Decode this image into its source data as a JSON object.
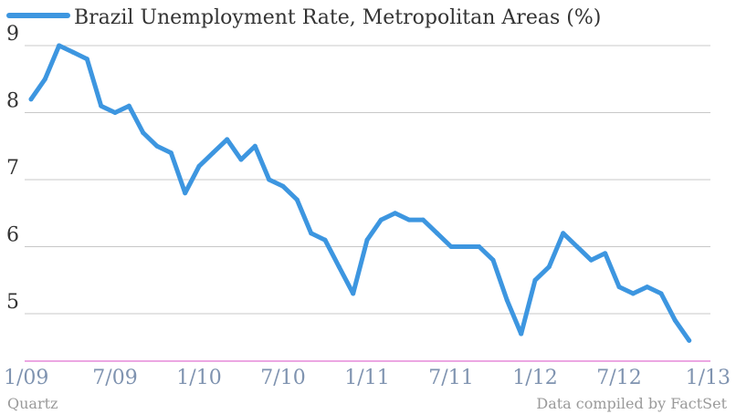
{
  "chart_data": {
    "type": "line",
    "legend": "Brazil Unemployment Rate, Metropolitan Areas (%)",
    "legend_position": "top-left",
    "x_start": "2009-01",
    "x_step_months": 1,
    "x_ticks": [
      "1/09",
      "7/09",
      "1/10",
      "7/10",
      "1/11",
      "7/11",
      "1/12",
      "7/12",
      "1/13"
    ],
    "y_ticks": [
      5,
      6,
      7,
      8,
      9
    ],
    "ylim": [
      4.3,
      9.3
    ],
    "grid": true,
    "series": [
      {
        "name": "Brazil Unemployment Rate, Metropolitan Areas (%)",
        "color": "#3d96e0",
        "values": [
          8.2,
          8.5,
          9.0,
          8.9,
          8.8,
          8.1,
          8.0,
          8.1,
          7.7,
          7.5,
          7.4,
          6.8,
          7.2,
          7.4,
          7.6,
          7.3,
          7.5,
          7.0,
          6.9,
          6.7,
          6.2,
          6.1,
          5.7,
          5.3,
          6.1,
          6.4,
          6.5,
          6.4,
          6.4,
          6.2,
          6.0,
          6.0,
          6.0,
          5.8,
          5.2,
          4.7,
          5.5,
          5.7,
          6.2,
          6.0,
          5.8,
          5.9,
          5.4,
          5.3,
          5.4,
          5.3,
          4.9,
          4.6
        ]
      }
    ]
  },
  "footer": {
    "source_left": "Quartz",
    "source_right": "Data compiled by FactSet"
  }
}
